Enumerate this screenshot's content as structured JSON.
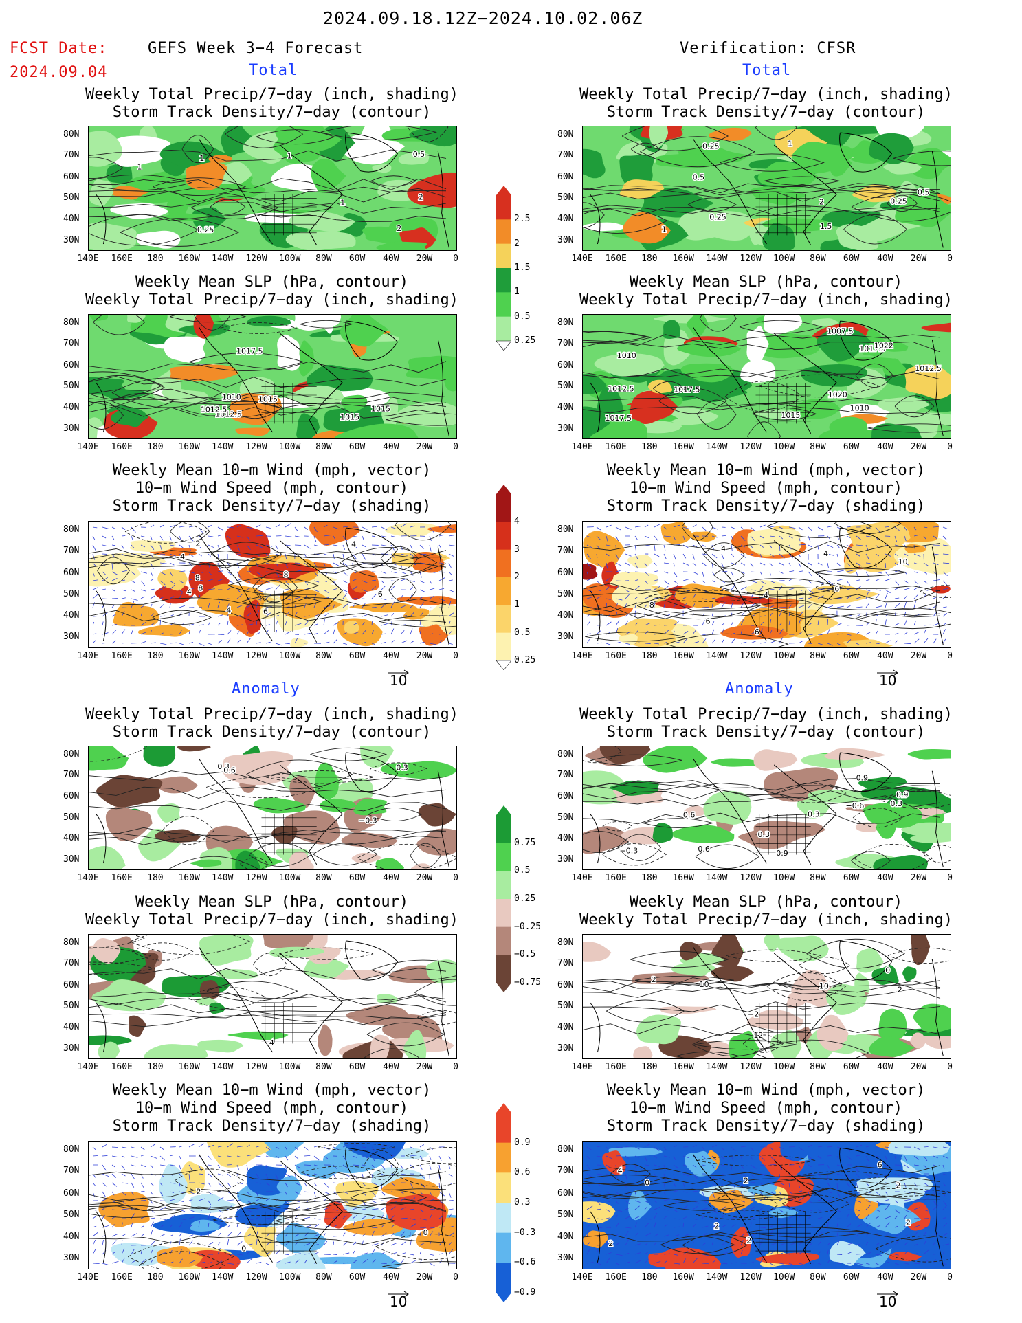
{
  "header": {
    "date_range": "2024.09.18.12Z−2024.10.02.06Z",
    "fcst_label": "FCST Date:",
    "fcst_date": "2024.09.04",
    "left_title": "GEFS Week 3−4 Forecast",
    "right_title": "Verification: CFSR"
  },
  "sections": {
    "total": "Total",
    "anomaly": "Anomaly"
  },
  "panel_titles": {
    "precip_storm": [
      "Weekly Total Precip/7−day (inch, shading)",
      "Storm Track Density/7−day (contour)"
    ],
    "slp_precip": [
      "Weekly Mean SLP (hPa, contour)",
      "Weekly Total Precip/7−day (inch, shading)"
    ],
    "wind_storm": [
      "Weekly Mean 10−m Wind (mph, vector)",
      "10−m Wind Speed (mph, contour)",
      "Storm Track Density/7−day (shading)"
    ]
  },
  "axes": {
    "lat_labels": [
      "80N",
      "70N",
      "60N",
      "50N",
      "40N",
      "30N"
    ],
    "lon_labels": [
      "140E",
      "160E",
      "180",
      "160W",
      "140W",
      "120W",
      "100W",
      "80W",
      "60W",
      "40W",
      "20W",
      "0"
    ]
  },
  "vector_ref": "10",
  "colorbars": {
    "precip_total": {
      "labels": [
        "2.5",
        "2",
        "1.5",
        "1",
        "0.5",
        "0.25"
      ],
      "colors": [
        "#d7301f",
        "#f28c28",
        "#f5d25a",
        "#1f9d3a",
        "#4fd14f",
        "#a8eca0"
      ]
    },
    "storm_total": {
      "labels": [
        "4",
        "3",
        "2",
        "1",
        "0.5",
        "0.25"
      ],
      "colors": [
        "#a11616",
        "#d6301b",
        "#f07020",
        "#f7a830",
        "#fbd46a",
        "#fdf2b0"
      ]
    },
    "precip_anom": {
      "labels": [
        "0.75",
        "0.5",
        "0.25",
        "−0.25",
        "−0.5",
        "−0.75"
      ],
      "colors": [
        "#1c9b35",
        "#4fd14f",
        "#a8eca0",
        "#e8c9c0",
        "#b4877a",
        "#6b4436"
      ]
    },
    "storm_anom": {
      "labels": [
        "0.9",
        "0.6",
        "0.3",
        "−0.3",
        "−0.6",
        "−0.9"
      ],
      "colors": [
        "#e8452a",
        "#f7a130",
        "#fbe07a",
        "#bfe8f5",
        "#5fb6ee",
        "#1760d6"
      ]
    }
  },
  "contour_labels": {
    "fc_total_precip": [
      "2",
      "1",
      "0.25",
      "1",
      "0.5",
      "1",
      "2",
      "1"
    ],
    "fc_total_slp": [
      "1015",
      "1012.5",
      "1010",
      "1015",
      "1012.5",
      "1015",
      "1017.5"
    ],
    "fc_total_wind": [
      "4",
      "8",
      "4",
      "2",
      "6",
      "8",
      "4",
      "6",
      "8",
      "4"
    ],
    "vf_total_precip": [
      "1",
      "0.5",
      "0.25",
      "2",
      "1.5",
      "0.25",
      "0.5",
      "0.25",
      "1"
    ],
    "vf_total_slp": [
      "1017.5",
      "1010",
      "1012.5",
      "1010",
      "1012.5",
      "1017.5",
      "1007.5",
      "1015",
      "1017.5",
      "1020",
      "1022"
    ],
    "vf_total_wind": [
      "4",
      "8",
      "6",
      "6",
      "6",
      "4",
      "10",
      "4"
    ],
    "fc_anom_precip": [
      "0.3",
      "0.3",
      "0.6",
      "−0.3"
    ],
    "fc_anom_slp": [
      "4"
    ],
    "fc_anom_wind": [
      "2",
      "0",
      "0"
    ],
    "vf_anom_precip": [
      "−0.6",
      "0.9",
      "0.3",
      "0.6",
      "0.3",
      "0.9",
      "−0.3",
      "0.9",
      "0.3",
      "0.6"
    ],
    "vf_anom_slp": [
      "2",
      "10",
      "10",
      "12",
      "0",
      "−2",
      "2"
    ],
    "vf_anom_wind": [
      "2",
      "6",
      "2",
      "2",
      "2",
      "0",
      "4",
      "2",
      "2"
    ]
  }
}
